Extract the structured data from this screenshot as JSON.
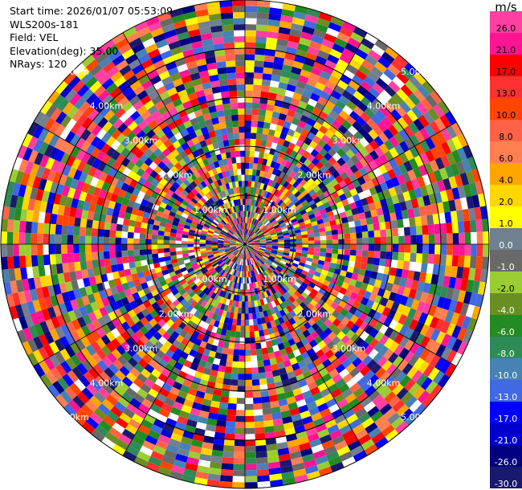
{
  "header": {
    "start_time": "Start time: 2026/01/07 05:53:09",
    "instrument": "WLS200s-181",
    "field": "Field: VEL",
    "elevation": "Elevation(deg): 35.00",
    "nrays": "NRays: 120"
  },
  "colorbar": {
    "unit": "m/s",
    "levels": [
      {
        "label": "26.0",
        "color": "#ff40a0"
      },
      {
        "label": "21.0",
        "color": "#ff1493"
      },
      {
        "label": "17.0",
        "color": "#ff0000"
      },
      {
        "label": "13.0",
        "color": "#ff3030"
      },
      {
        "label": "10.0",
        "color": "#ff4500"
      },
      {
        "label": "8.0",
        "color": "#ff6347"
      },
      {
        "label": "6.0",
        "color": "#ff7f50"
      },
      {
        "label": "4.0",
        "color": "#ffa500"
      },
      {
        "label": "2.0",
        "color": "#ffd700"
      },
      {
        "label": "1.0",
        "color": "#ffff00"
      },
      {
        "label": "0.0",
        "color": "#708090"
      },
      {
        "label": "-1.0",
        "color": "#696969"
      },
      {
        "label": "-2.0",
        "color": "#9acd32"
      },
      {
        "label": "-4.0",
        "color": "#6b8e23"
      },
      {
        "label": "-6.0",
        "color": "#228b22"
      },
      {
        "label": "-8.0",
        "color": "#2e8b57"
      },
      {
        "label": "-10.0",
        "color": "#4682b4"
      },
      {
        "label": "-13.0",
        "color": "#4169e1"
      },
      {
        "label": "-17.0",
        "color": "#0000ff"
      },
      {
        "label": "-21.0",
        "color": "#0000cd"
      },
      {
        "label": "-26.0",
        "color": "#000080"
      },
      {
        "label": "-30.0",
        "color": "#191970"
      }
    ]
  },
  "chart_data": {
    "type": "heatmap",
    "projection": "polar (PPI)",
    "field": "VEL",
    "nrays": 120,
    "range_rings_km": [
      1.0,
      2.0,
      3.0,
      4.0,
      5.0
    ],
    "ring_labels": [
      "1.00km",
      "2.00km",
      "3.00km",
      "4.00km",
      "5.00km"
    ],
    "azimuth_step_deg": 3,
    "grid": true,
    "values_note": "Velocity values appear random/noisy across the full colour scale from -30 to 26 m/s"
  }
}
